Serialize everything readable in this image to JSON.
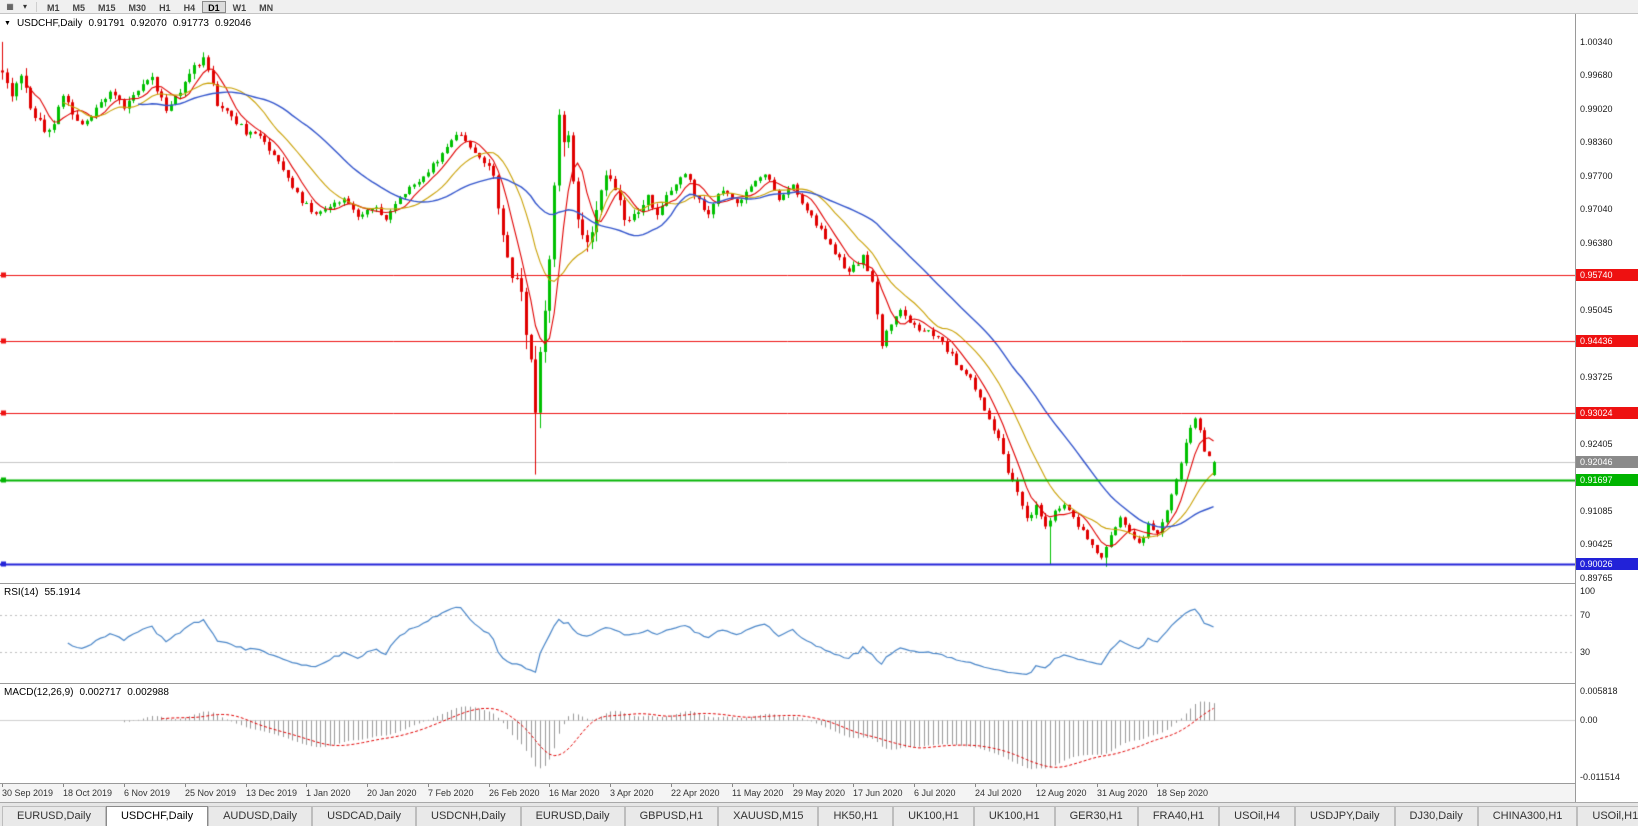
{
  "toolbar": {
    "timeframes": [
      "M1",
      "M5",
      "M15",
      "M30",
      "H1",
      "H4",
      "D1",
      "W1",
      "MN"
    ],
    "active_timeframe": "D1"
  },
  "chart_header": {
    "symbol": "USDCHF,Daily",
    "open": "0.91791",
    "high": "0.92070",
    "low": "0.91773",
    "close": "0.92046"
  },
  "price_axis": {
    "min": 0.8966,
    "max": 1.0089,
    "tick_labels": [
      "1.00340",
      "0.99680",
      "0.99020",
      "0.98360",
      "0.97700",
      "0.97040",
      "0.96380",
      "0.95045",
      "0.93725",
      "0.92405",
      "0.91085",
      "0.90425",
      "0.89765"
    ]
  },
  "levels": [
    {
      "price": 0.9574,
      "label": "0.95740",
      "color": "#ee1111",
      "kind": "resistance"
    },
    {
      "price": 0.94436,
      "label": "0.94436",
      "color": "#ee1111",
      "kind": "resistance"
    },
    {
      "price": 0.93024,
      "label": "0.93024",
      "color": "#ee1111",
      "kind": "resistance"
    },
    {
      "price": 0.91697,
      "label": "0.91697",
      "color": "#00b400",
      "kind": "support"
    },
    {
      "price": 0.90026,
      "label": "0.90026",
      "color": "#2222d8",
      "kind": "support"
    }
  ],
  "current_price": {
    "value": 0.92046,
    "label": "0.92046",
    "badge_color": "#8a8a8a"
  },
  "time_axis": [
    "30 Sep 2019",
    "18 Oct 2019",
    "6 Nov 2019",
    "25 Nov 2019",
    "13 Dec 2019",
    "1 Jan 2020",
    "20 Jan 2020",
    "7 Feb 2020",
    "26 Feb 2020",
    "16 Mar 2020",
    "3 Apr 2020",
    "22 Apr 2020",
    "11 May 2020",
    "29 May 2020",
    "17 Jun 2020",
    "6 Jul 2020",
    "24 Jul 2020",
    "12 Aug 2020",
    "31 Aug 2020",
    "18 Sep 2020"
  ],
  "rsi": {
    "label": "RSI(14)",
    "value": "55.1914",
    "period": 14,
    "levels": [
      70,
      30
    ],
    "axis_values": [
      100,
      70,
      30
    ],
    "axis_labels": [
      "100",
      "70",
      "30"
    ],
    "line_color": "#4a86c8"
  },
  "macd": {
    "label": "MACD(12,26,9)",
    "value_main": "0.002717",
    "value_signal": "0.002988",
    "axis_values": [
      0.005818,
      0,
      -0.011514
    ],
    "axis_labels": [
      "0.005818",
      "0.00",
      "-0.011514"
    ],
    "histogram_color": "#9a9a9a",
    "signal_color": "#e00000"
  },
  "tabs": {
    "active_index": 1,
    "items": [
      "EURUSD,Daily",
      "USDCHF,Daily",
      "AUDUSD,Daily",
      "USDCAD,Daily",
      "USDCNH,Daily",
      "EURUSD,Daily",
      "GBPUSD,H1",
      "XAUUSD,M15",
      "HK50,H1",
      "UK100,H1",
      "UK100,H1",
      "GER30,H1",
      "FRA40,H1",
      "USOil,H4",
      "USDJPY,Daily",
      "DJ30,Daily",
      "CHINA300,H1",
      "USOil,H1"
    ]
  },
  "chart_data": {
    "type": "candlestick",
    "symbol": "USDCHF",
    "timeframe": "D1",
    "title": "USDCHF,Daily",
    "ylim": [
      0.8966,
      1.0089
    ],
    "x_labels": [
      "30 Sep 2019",
      "18 Oct 2019",
      "6 Nov 2019",
      "25 Nov 2019",
      "13 Dec 2019",
      "1 Jan 2020",
      "20 Jan 2020",
      "7 Feb 2020",
      "26 Feb 2020",
      "16 Mar 2020",
      "3 Apr 2020",
      "22 Apr 2020",
      "11 May 2020",
      "29 May 2020",
      "17 Jun 2020",
      "6 Jul 2020",
      "24 Jul 2020",
      "12 Aug 2020",
      "31 Aug 2020",
      "18 Sep 2020"
    ],
    "candle_count": 260,
    "visible_span_fraction": 0.772,
    "date_label_step": 13,
    "seed": 1337,
    "up_color": "#00c000",
    "down_color": "#e00000",
    "moving_averages": [
      {
        "period": 6,
        "color": "#e00000"
      },
      {
        "period": 14,
        "color": "#c9a004"
      },
      {
        "period": 30,
        "color": "#3355cc"
      }
    ],
    "price_anchors": [
      [
        0,
        0.9985,
        0.004
      ],
      [
        2,
        0.9925,
        0.0035
      ],
      [
        4,
        0.997,
        0.003
      ],
      [
        7,
        0.9885,
        0.0028
      ],
      [
        10,
        0.9855,
        0.0024
      ],
      [
        13,
        0.9935,
        0.0024
      ],
      [
        16,
        0.987,
        0.002
      ],
      [
        20,
        0.99,
        0.002
      ],
      [
        23,
        0.994,
        0.0018
      ],
      [
        26,
        0.99,
        0.0018
      ],
      [
        29,
        0.994,
        0.0018
      ],
      [
        32,
        0.9965,
        0.0018
      ],
      [
        35,
        0.99,
        0.0018
      ],
      [
        38,
        0.9935,
        0.002
      ],
      [
        41,
        0.999,
        0.0022
      ],
      [
        43,
        1.0,
        0.002
      ],
      [
        46,
        0.9915,
        0.002
      ],
      [
        49,
        0.989,
        0.0018
      ],
      [
        52,
        0.9855,
        0.0016
      ],
      [
        55,
        0.9845,
        0.0015
      ],
      [
        58,
        0.9815,
        0.0015
      ],
      [
        61,
        0.9765,
        0.0015
      ],
      [
        64,
        0.972,
        0.0015
      ],
      [
        67,
        0.969,
        0.0014
      ],
      [
        70,
        0.971,
        0.0013
      ],
      [
        73,
        0.9725,
        0.0013
      ],
      [
        76,
        0.969,
        0.0013
      ],
      [
        79,
        0.971,
        0.0013
      ],
      [
        82,
        0.9685,
        0.0013
      ],
      [
        85,
        0.973,
        0.0013
      ],
      [
        88,
        0.9755,
        0.0013
      ],
      [
        91,
        0.9775,
        0.0013
      ],
      [
        94,
        0.9815,
        0.0014
      ],
      [
        97,
        0.985,
        0.0014
      ],
      [
        100,
        0.983,
        0.0014
      ],
      [
        103,
        0.9795,
        0.0016
      ],
      [
        105,
        0.977,
        0.0022
      ],
      [
        107,
        0.9655,
        0.003
      ],
      [
        109,
        0.9575,
        0.0042
      ],
      [
        111,
        0.952,
        0.005
      ],
      [
        113,
        0.94,
        0.006
      ],
      [
        114,
        0.933,
        0.007
      ],
      [
        116,
        0.9505,
        0.008
      ],
      [
        118,
        0.9725,
        0.008
      ],
      [
        119,
        0.9885,
        0.006
      ],
      [
        121,
        0.983,
        0.005
      ],
      [
        123,
        0.969,
        0.0045
      ],
      [
        125,
        0.9635,
        0.004
      ],
      [
        127,
        0.9715,
        0.0035
      ],
      [
        129,
        0.9775,
        0.0028
      ],
      [
        131,
        0.9745,
        0.0024
      ],
      [
        133,
        0.969,
        0.0022
      ],
      [
        135,
        0.969,
        0.002
      ],
      [
        138,
        0.9725,
        0.0018
      ],
      [
        140,
        0.9685,
        0.0018
      ],
      [
        143,
        0.9745,
        0.0018
      ],
      [
        146,
        0.978,
        0.0016
      ],
      [
        148,
        0.9735,
        0.0016
      ],
      [
        151,
        0.9695,
        0.0015
      ],
      [
        154,
        0.9745,
        0.0015
      ],
      [
        157,
        0.9715,
        0.0014
      ],
      [
        160,
        0.9745,
        0.0014
      ],
      [
        163,
        0.9775,
        0.0014
      ],
      [
        166,
        0.972,
        0.0013
      ],
      [
        169,
        0.975,
        0.0013
      ],
      [
        172,
        0.97,
        0.0013
      ],
      [
        175,
        0.966,
        0.0013
      ],
      [
        178,
        0.9615,
        0.0013
      ],
      [
        181,
        0.958,
        0.0013
      ],
      [
        184,
        0.961,
        0.0014
      ],
      [
        186,
        0.9555,
        0.0016
      ],
      [
        188,
        0.944,
        0.0022
      ],
      [
        190,
        0.948,
        0.0018
      ],
      [
        192,
        0.951,
        0.0016
      ],
      [
        195,
        0.947,
        0.0014
      ],
      [
        198,
        0.946,
        0.0013
      ],
      [
        201,
        0.944,
        0.0013
      ],
      [
        204,
        0.94,
        0.0013
      ],
      [
        207,
        0.937,
        0.0013
      ],
      [
        210,
        0.931,
        0.0014
      ],
      [
        213,
        0.9255,
        0.0015
      ],
      [
        215,
        0.919,
        0.0016
      ],
      [
        217,
        0.914,
        0.0017
      ],
      [
        219,
        0.909,
        0.0016
      ],
      [
        221,
        0.9115,
        0.0014
      ],
      [
        223,
        0.908,
        0.0014
      ],
      [
        225,
        0.9105,
        0.0013
      ],
      [
        227,
        0.912,
        0.0013
      ],
      [
        229,
        0.9095,
        0.0013
      ],
      [
        231,
        0.907,
        0.0013
      ],
      [
        233,
        0.904,
        0.0013
      ],
      [
        235,
        0.9012,
        0.0013
      ],
      [
        237,
        0.906,
        0.0013
      ],
      [
        239,
        0.909,
        0.0013
      ],
      [
        241,
        0.9065,
        0.0012
      ],
      [
        243,
        0.904,
        0.0012
      ],
      [
        245,
        0.908,
        0.0012
      ],
      [
        247,
        0.906,
        0.0012
      ],
      [
        249,
        0.9105,
        0.0013
      ],
      [
        251,
        0.917,
        0.0014
      ],
      [
        253,
        0.924,
        0.0015
      ],
      [
        255,
        0.9292,
        0.0013
      ],
      [
        256,
        0.9268,
        0.0012
      ],
      [
        257,
        0.923,
        0.0012
      ],
      [
        258,
        0.9212,
        0.001
      ],
      [
        259,
        0.9205,
        0.0008
      ]
    ],
    "spikes": [
      {
        "index": 0,
        "high": 1.0034
      },
      {
        "index": 114,
        "low": 0.918
      },
      {
        "index": 119,
        "high": 0.9901
      },
      {
        "index": 224,
        "low": 0.9003
      },
      {
        "index": 236,
        "low": 0.8998
      }
    ]
  }
}
